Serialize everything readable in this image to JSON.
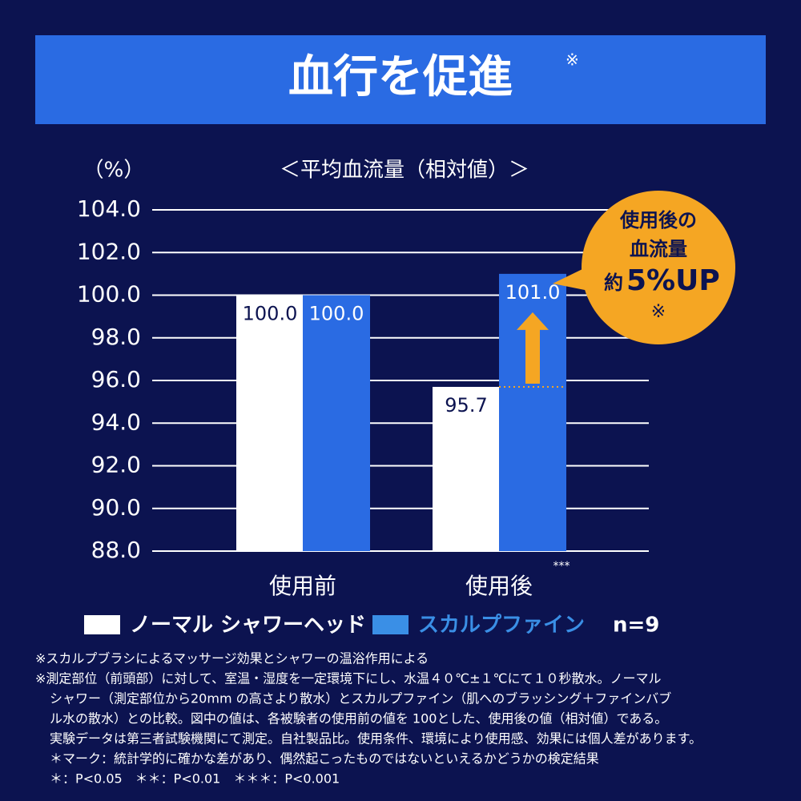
{
  "chart_data": {
    "type": "bar",
    "title": "血行を促進",
    "title_mark": "※",
    "subtitle": "＜平均血流量（相対値）＞",
    "y_unit": "（%）",
    "categories": [
      "使用前",
      "使用後"
    ],
    "category_annotations": [
      null,
      "***"
    ],
    "series": [
      {
        "name": "ノーマル シャワーヘッド",
        "color": "#ffffff",
        "values": [
          100.0,
          95.7
        ],
        "value_labels": [
          "100.0",
          "95.7"
        ]
      },
      {
        "name": "スカルプファイン",
        "color": "#2a6be3",
        "values": [
          100.0,
          101.0
        ],
        "value_labels": [
          "100.0",
          "101.0"
        ]
      }
    ],
    "legend_note": "n=9",
    "ylim": [
      88,
      104
    ],
    "yticks": [
      {
        "value": 88,
        "label": "88.0"
      },
      {
        "value": 90,
        "label": "90.0"
      },
      {
        "value": 92,
        "label": "92.0"
      },
      {
        "value": 94,
        "label": "94.0"
      },
      {
        "value": 96,
        "label": "96.0"
      },
      {
        "value": 98,
        "label": "98.0"
      },
      {
        "value": 100,
        "label": "100.0"
      },
      {
        "value": 102,
        "label": "102.0"
      },
      {
        "value": 104,
        "label": "104.0"
      }
    ],
    "grid": true,
    "callout": {
      "line1": "使用後の",
      "line2": "血流量",
      "prefix": "約",
      "highlight": "5%UP",
      "mark": "※"
    },
    "notes": [
      "※スカルプブラシによるマッサージ効果とシャワーの温浴作用による",
      "※測定部位（前頭部）に対して、室温・湿度を一定環境下にし、水温４０℃±１℃にて１０秒散水。ノーマル",
      "シャワー（測定部位から20mm の高さより散水）とスカルプファイン（肌へのブラッシング＋ファインバブ",
      "ル水の散水）との比較。図中の値は、各被験者の使用前の値を 100とした、使用後の値（相対値）である。",
      "実験データは第三者試験機関にて測定。自社製品比。使用条件、環境により使用感、効果には個人差があります。",
      "＊マーク：統計学的に確かな差があり、偶然起こったものではないといえるかどうかの検定結果",
      "＊：P<0.05　＊＊：P<0.01　＊＊＊：P<0.001"
    ]
  }
}
